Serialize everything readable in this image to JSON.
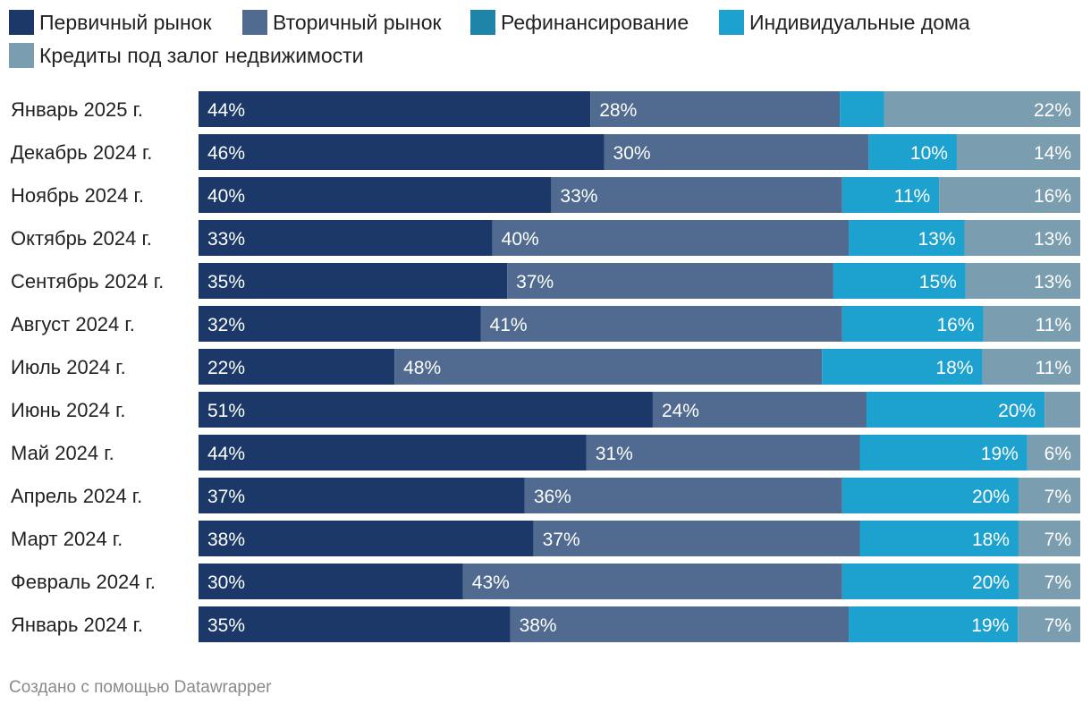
{
  "chart_data": {
    "type": "bar",
    "orientation": "horizontal",
    "stacked": true,
    "percent_stacked": true,
    "legend_position": "top",
    "categories": [
      "Январь 2025 г.",
      "Декабрь 2024 г.",
      "Ноябрь 2024 г.",
      "Октябрь 2024 г.",
      "Сентябрь 2024 г.",
      "Август 2024 г.",
      "Июль 2024 г.",
      "Июнь 2024 г.",
      "Май 2024 г.",
      "Апрель 2024 г.",
      "Март 2024 г.",
      "Февраль 2024 г.",
      "Январь 2024 г."
    ],
    "series": [
      {
        "name": "Первичный рынок",
        "color": "#1b3869",
        "values": [
          44,
          46,
          40,
          33,
          35,
          32,
          22,
          51,
          44,
          37,
          38,
          30,
          35
        ],
        "labels": [
          "44%",
          "46%",
          "40%",
          "33%",
          "35%",
          "32%",
          "22%",
          "51%",
          "44%",
          "37%",
          "38%",
          "30%",
          "35%"
        ]
      },
      {
        "name": "Вторичный рынок",
        "color": "#506a90",
        "values": [
          28,
          30,
          33,
          40,
          37,
          41,
          48,
          24,
          31,
          36,
          37,
          43,
          38
        ],
        "labels": [
          "28%",
          "30%",
          "33%",
          "40%",
          "37%",
          "41%",
          "48%",
          "24%",
          "31%",
          "36%",
          "37%",
          "43%",
          "38%"
        ]
      },
      {
        "name": "Рефинансирование",
        "color": "#1f85a8",
        "values": [
          0,
          0,
          0,
          0,
          0,
          0,
          0,
          0,
          0,
          0,
          0,
          0,
          0
        ],
        "labels": [
          "",
          "",
          "",
          "",
          "",
          "",
          "",
          "",
          "",
          "",
          "",
          "",
          ""
        ]
      },
      {
        "name": "Индивидуальные дома",
        "color": "#1da2d0",
        "values": [
          5,
          10,
          11,
          13,
          15,
          16,
          18,
          20,
          19,
          20,
          18,
          20,
          19
        ],
        "labels": [
          "",
          "10%",
          "11%",
          "13%",
          "15%",
          "16%",
          "18%",
          "20%",
          "19%",
          "20%",
          "18%",
          "20%",
          "19%"
        ]
      },
      {
        "name": "Кредиты под залог недвижимости",
        "color": "#7b9db0",
        "values": [
          22,
          14,
          16,
          13,
          13,
          11,
          11,
          4,
          6,
          7,
          7,
          7,
          7
        ],
        "labels": [
          "22%",
          "14%",
          "16%",
          "13%",
          "13%",
          "11%",
          "11%",
          "",
          "6%",
          "7%",
          "7%",
          "7%",
          "7%"
        ]
      }
    ],
    "xlim": [
      0,
      100
    ],
    "footer": "Создано с помощью Datawrapper"
  }
}
